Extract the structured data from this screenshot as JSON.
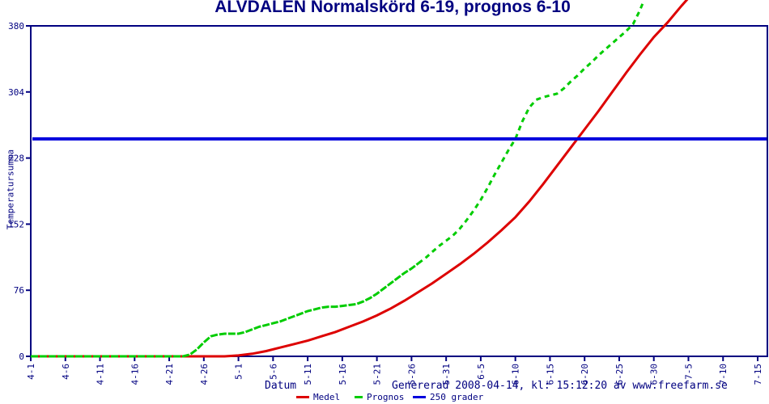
{
  "title": "ÄLVDALEN Normalskörd 6-19, prognos 6-10",
  "footer": {
    "generated": "Genererad 2008-04-14, kl: 15:12:20 av www.freefarm.se"
  },
  "colors": {
    "navy": "#000080",
    "medel": "#dd0000",
    "prognos": "#00cc00",
    "line250": "#0000dd",
    "background": "#ffffff"
  },
  "chart_data": {
    "type": "line",
    "title": "ÄLVDALEN Normalskörd 6-19, prognos 6-10",
    "xlabel": "Datum",
    "ylabel": "Temperatursumma",
    "ylim": [
      0,
      380
    ],
    "y_ticks": [
      0,
      76,
      152,
      228,
      304,
      380
    ],
    "x_ticks": [
      "4-1",
      "4-6",
      "4-11",
      "4-16",
      "4-21",
      "4-26",
      "5-1",
      "5-6",
      "5-11",
      "5-16",
      "5-21",
      "5-26",
      "5-31",
      "6-5",
      "6-10",
      "6-15",
      "6-20",
      "6-25",
      "6-30",
      "7-5",
      "7-10",
      "7-15"
    ],
    "x_tick_interval_days": 5,
    "grid": false,
    "legend_position": "bottom-center",
    "reference_line": {
      "label": "250 grader",
      "value": 250
    },
    "series": [
      {
        "name": "Medel",
        "style": "solid",
        "crosses_250_at": "6-19",
        "points": [
          [
            0,
            0
          ],
          [
            5,
            0
          ],
          [
            10,
            0
          ],
          [
            15,
            0
          ],
          [
            20,
            0
          ],
          [
            24,
            0
          ],
          [
            26,
            0
          ],
          [
            28,
            0
          ],
          [
            30,
            1
          ],
          [
            32,
            3
          ],
          [
            34,
            6
          ],
          [
            36,
            10
          ],
          [
            38,
            14
          ],
          [
            40,
            18
          ],
          [
            42,
            23
          ],
          [
            44,
            28
          ],
          [
            46,
            34
          ],
          [
            48,
            40
          ],
          [
            50,
            47
          ],
          [
            52,
            55
          ],
          [
            54,
            64
          ],
          [
            56,
            74
          ],
          [
            58,
            84
          ],
          [
            60,
            95
          ],
          [
            62,
            106
          ],
          [
            64,
            118
          ],
          [
            66,
            131
          ],
          [
            68,
            145
          ],
          [
            70,
            160
          ],
          [
            72,
            178
          ],
          [
            74,
            198
          ],
          [
            76,
            219
          ],
          [
            78,
            240
          ],
          [
            80,
            261
          ],
          [
            82,
            282
          ],
          [
            84,
            304
          ],
          [
            86,
            326
          ],
          [
            88,
            347
          ],
          [
            90,
            367
          ],
          [
            92,
            384
          ],
          [
            94,
            403
          ],
          [
            95,
            412
          ]
        ]
      },
      {
        "name": "Prognos",
        "style": "dashed",
        "solid_until_day": 56,
        "crosses_250_at": "6-10",
        "points": [
          [
            0,
            0
          ],
          [
            5,
            0
          ],
          [
            10,
            0
          ],
          [
            15,
            0
          ],
          [
            20,
            0
          ],
          [
            22,
            0
          ],
          [
            23,
            2
          ],
          [
            24,
            8
          ],
          [
            25,
            16
          ],
          [
            26,
            23
          ],
          [
            27,
            25
          ],
          [
            28,
            26
          ],
          [
            29,
            26
          ],
          [
            30,
            26
          ],
          [
            31,
            28
          ],
          [
            32,
            31
          ],
          [
            33,
            34
          ],
          [
            34,
            36
          ],
          [
            35,
            38
          ],
          [
            36,
            40
          ],
          [
            37,
            43
          ],
          [
            38,
            46
          ],
          [
            39,
            49
          ],
          [
            40,
            52
          ],
          [
            41,
            54
          ],
          [
            42,
            56
          ],
          [
            43,
            57
          ],
          [
            44,
            57
          ],
          [
            45,
            58
          ],
          [
            46,
            59
          ],
          [
            47,
            60
          ],
          [
            48,
            63
          ],
          [
            49,
            67
          ],
          [
            50,
            72
          ],
          [
            51,
            78
          ],
          [
            52,
            84
          ],
          [
            53,
            90
          ],
          [
            54,
            96
          ],
          [
            55,
            101
          ],
          [
            56,
            107
          ],
          [
            57,
            113
          ],
          [
            58,
            120
          ],
          [
            59,
            127
          ],
          [
            60,
            133
          ],
          [
            61,
            139
          ],
          [
            62,
            147
          ],
          [
            63,
            157
          ],
          [
            64,
            168
          ],
          [
            65,
            180
          ],
          [
            66,
            194
          ],
          [
            67,
            209
          ],
          [
            68,
            223
          ],
          [
            69,
            237
          ],
          [
            70,
            250
          ],
          [
            71,
            270
          ],
          [
            72,
            286
          ],
          [
            73,
            295
          ],
          [
            74,
            298
          ],
          [
            75,
            300
          ],
          [
            76,
            302
          ],
          [
            77,
            308
          ],
          [
            78,
            316
          ],
          [
            79,
            323
          ],
          [
            80,
            331
          ],
          [
            81,
            338
          ],
          [
            82,
            346
          ],
          [
            83,
            353
          ],
          [
            84,
            360
          ],
          [
            85,
            367
          ],
          [
            86,
            374
          ],
          [
            87,
            382
          ],
          [
            88,
            398
          ],
          [
            88.5,
            408
          ]
        ]
      }
    ]
  }
}
